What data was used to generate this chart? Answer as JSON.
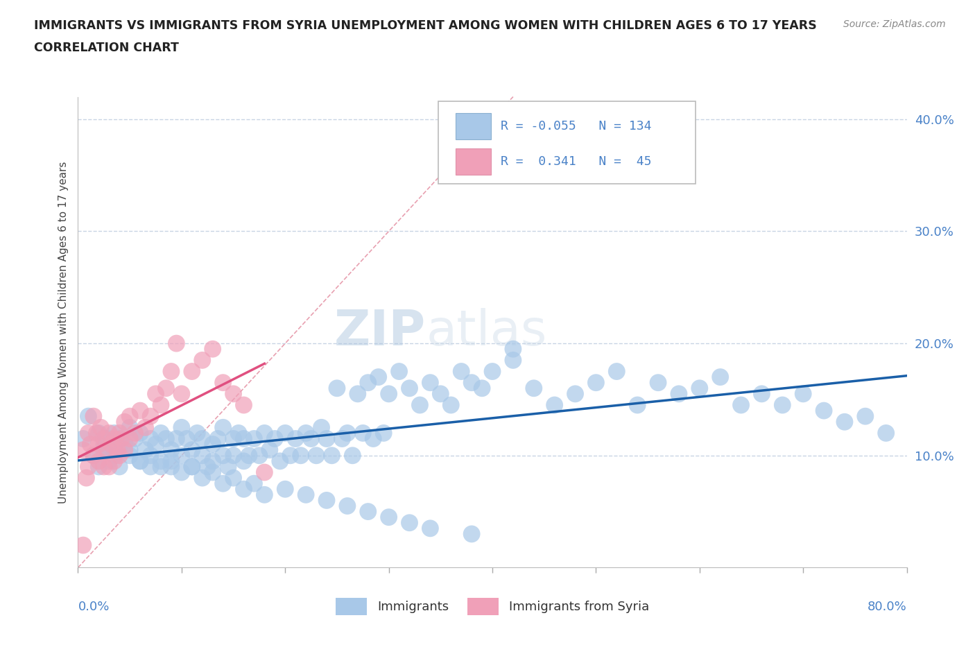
{
  "title_line1": "IMMIGRANTS VS IMMIGRANTS FROM SYRIA UNEMPLOYMENT AMONG WOMEN WITH CHILDREN AGES 6 TO 17 YEARS",
  "title_line2": "CORRELATION CHART",
  "source": "Source: ZipAtlas.com",
  "ylabel": "Unemployment Among Women with Children Ages 6 to 17 years",
  "xmin": 0.0,
  "xmax": 0.8,
  "ymin": 0.0,
  "ymax": 0.42,
  "blue_R": -0.055,
  "blue_N": 134,
  "pink_R": 0.341,
  "pink_N": 45,
  "blue_color": "#a8c8e8",
  "blue_line_color": "#1a5fa8",
  "pink_color": "#f0a0b8",
  "pink_line_color": "#e05080",
  "diag_line_color": "#e8a0b0",
  "grid_color": "#c8d4e4",
  "background_color": "#ffffff",
  "blue_scatter_x": [
    0.005,
    0.01,
    0.015,
    0.02,
    0.02,
    0.025,
    0.025,
    0.03,
    0.03,
    0.035,
    0.035,
    0.04,
    0.04,
    0.045,
    0.05,
    0.05,
    0.055,
    0.06,
    0.06,
    0.065,
    0.07,
    0.07,
    0.075,
    0.08,
    0.08,
    0.085,
    0.09,
    0.09,
    0.095,
    0.1,
    0.1,
    0.105,
    0.11,
    0.11,
    0.115,
    0.12,
    0.12,
    0.125,
    0.13,
    0.13,
    0.135,
    0.14,
    0.14,
    0.145,
    0.15,
    0.15,
    0.155,
    0.16,
    0.16,
    0.165,
    0.17,
    0.175,
    0.18,
    0.185,
    0.19,
    0.195,
    0.2,
    0.205,
    0.21,
    0.215,
    0.22,
    0.225,
    0.23,
    0.235,
    0.24,
    0.245,
    0.25,
    0.255,
    0.26,
    0.265,
    0.27,
    0.275,
    0.28,
    0.285,
    0.29,
    0.295,
    0.3,
    0.31,
    0.32,
    0.33,
    0.34,
    0.35,
    0.36,
    0.37,
    0.38,
    0.39,
    0.4,
    0.42,
    0.44,
    0.46,
    0.48,
    0.5,
    0.52,
    0.54,
    0.56,
    0.58,
    0.6,
    0.62,
    0.64,
    0.66,
    0.68,
    0.7,
    0.72,
    0.74,
    0.76,
    0.78,
    0.025,
    0.03,
    0.04,
    0.05,
    0.06,
    0.07,
    0.08,
    0.09,
    0.1,
    0.11,
    0.12,
    0.13,
    0.14,
    0.15,
    0.16,
    0.17,
    0.18,
    0.2,
    0.22,
    0.24,
    0.26,
    0.28,
    0.3,
    0.32,
    0.34,
    0.38,
    0.415,
    0.42
  ],
  "blue_scatter_y": [
    0.115,
    0.135,
    0.1,
    0.12,
    0.09,
    0.11,
    0.105,
    0.115,
    0.095,
    0.12,
    0.1,
    0.115,
    0.09,
    0.11,
    0.125,
    0.1,
    0.115,
    0.12,
    0.095,
    0.105,
    0.115,
    0.09,
    0.11,
    0.12,
    0.095,
    0.115,
    0.105,
    0.09,
    0.115,
    0.125,
    0.1,
    0.115,
    0.105,
    0.09,
    0.12,
    0.1,
    0.115,
    0.09,
    0.11,
    0.095,
    0.115,
    0.1,
    0.125,
    0.09,
    0.115,
    0.1,
    0.12,
    0.095,
    0.115,
    0.1,
    0.115,
    0.1,
    0.12,
    0.105,
    0.115,
    0.095,
    0.12,
    0.1,
    0.115,
    0.1,
    0.12,
    0.115,
    0.1,
    0.125,
    0.115,
    0.1,
    0.16,
    0.115,
    0.12,
    0.1,
    0.155,
    0.12,
    0.165,
    0.115,
    0.17,
    0.12,
    0.155,
    0.175,
    0.16,
    0.145,
    0.165,
    0.155,
    0.145,
    0.175,
    0.165,
    0.16,
    0.175,
    0.185,
    0.16,
    0.145,
    0.155,
    0.165,
    0.175,
    0.145,
    0.165,
    0.155,
    0.16,
    0.17,
    0.145,
    0.155,
    0.145,
    0.155,
    0.14,
    0.13,
    0.135,
    0.12,
    0.115,
    0.105,
    0.11,
    0.105,
    0.095,
    0.1,
    0.09,
    0.095,
    0.085,
    0.09,
    0.08,
    0.085,
    0.075,
    0.08,
    0.07,
    0.075,
    0.065,
    0.07,
    0.065,
    0.06,
    0.055,
    0.05,
    0.045,
    0.04,
    0.035,
    0.03,
    0.375,
    0.195
  ],
  "pink_scatter_x": [
    0.005,
    0.008,
    0.01,
    0.01,
    0.012,
    0.015,
    0.015,
    0.018,
    0.02,
    0.02,
    0.022,
    0.025,
    0.025,
    0.028,
    0.03,
    0.03,
    0.032,
    0.035,
    0.035,
    0.038,
    0.04,
    0.04,
    0.042,
    0.045,
    0.045,
    0.05,
    0.05,
    0.055,
    0.06,
    0.065,
    0.07,
    0.075,
    0.08,
    0.085,
    0.09,
    0.095,
    0.1,
    0.11,
    0.12,
    0.13,
    0.14,
    0.15,
    0.16,
    0.18,
    0.005
  ],
  "pink_scatter_y": [
    0.105,
    0.08,
    0.12,
    0.09,
    0.11,
    0.135,
    0.1,
    0.12,
    0.11,
    0.095,
    0.125,
    0.115,
    0.09,
    0.105,
    0.12,
    0.09,
    0.11,
    0.115,
    0.095,
    0.105,
    0.12,
    0.1,
    0.115,
    0.13,
    0.105,
    0.115,
    0.135,
    0.12,
    0.14,
    0.125,
    0.135,
    0.155,
    0.145,
    0.16,
    0.175,
    0.2,
    0.155,
    0.175,
    0.185,
    0.195,
    0.165,
    0.155,
    0.145,
    0.085,
    0.02
  ]
}
